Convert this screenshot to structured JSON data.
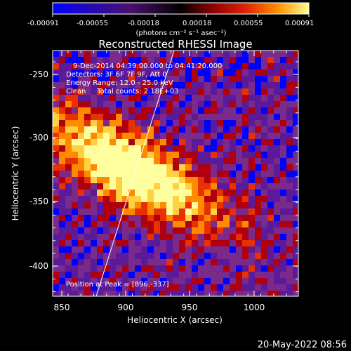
{
  "colorbar": {
    "tick_labels": [
      "-0.00091",
      "-0.00055",
      "-0.00018",
      "0.00018",
      "0.00055",
      "0.00091"
    ],
    "units_label": "(photons cm⁻² s⁻¹ asec⁻²)"
  },
  "plot": {
    "title": "Reconstructed RHESSI Image",
    "info_lines": [
      "9-Dec-2014 04:39:00.000 to 04:41:20.000",
      "Detectors: 3F 6F 7F 9F, Att 0",
      "Energy Range: 12.0 - 25.0 keV",
      "Clean     Total counts: 2.18E+03"
    ],
    "peak_label": "Position at Peak = [896,-337]",
    "x_axis_label": "Heliocentric X (arcsec)",
    "y_axis_label": "Heliocentric Y (arcsec)",
    "x_ticks": [
      "850",
      "900",
      "950",
      "1000"
    ],
    "y_ticks": [
      "-250",
      "-300",
      "-350",
      "-400"
    ]
  },
  "colors": {
    "colormap": [
      "#0000ff",
      "#5a1a9a",
      "#7a2a8a",
      "#b00010",
      "#e83000",
      "#ff8a00",
      "#ffd040",
      "#ffffa0"
    ]
  },
  "footer": {
    "timestamp": "20-May-2022 08:56"
  }
}
